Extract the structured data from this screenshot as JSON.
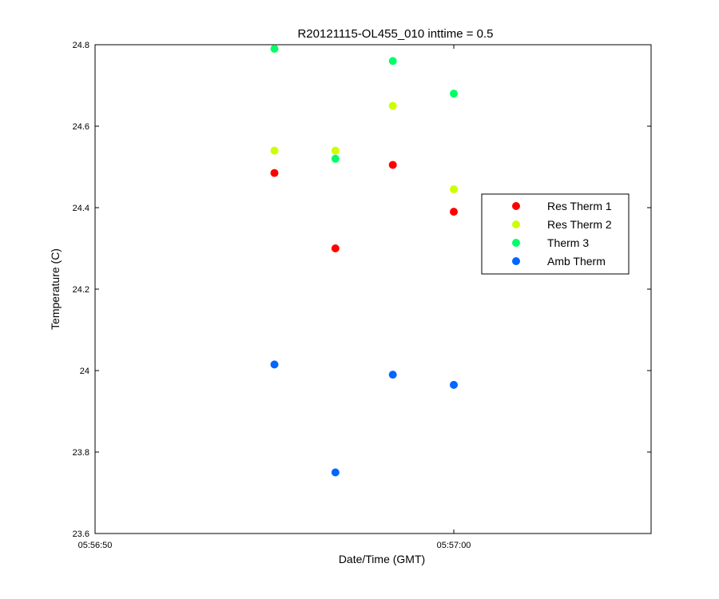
{
  "chart_data": {
    "type": "scatter",
    "title": "R20121115-OL455_010 inttime = 0.5",
    "xlabel": "Date/Time (GMT)",
    "ylabel": "Temperature (C)",
    "x_unit": "time",
    "xlim": [
      "05:56:50",
      "05:57:05.5"
    ],
    "ylim": [
      23.6,
      24.8
    ],
    "x_ticks": [
      "05:56:50",
      "05:57:00"
    ],
    "y_ticks": [
      23.6,
      23.8,
      24,
      24.2,
      24.4,
      24.6,
      24.8
    ],
    "y_tick_labels": [
      "23.6",
      "23.8",
      "24",
      "24.2",
      "24.4",
      "24.6",
      "24.8"
    ],
    "grid": false,
    "legend_position": "right",
    "series": [
      {
        "name": "Res Therm 1",
        "color": "#ff0000",
        "points": [
          [
            "05:56:55",
            24.485
          ],
          [
            "05:56:56.7",
            24.3
          ],
          [
            "05:56:58.3",
            24.505
          ],
          [
            "05:57:00",
            24.39
          ]
        ]
      },
      {
        "name": "Res Therm 2",
        "color": "#ccff00",
        "points": [
          [
            "05:56:55",
            24.54
          ],
          [
            "05:56:56.7",
            24.54
          ],
          [
            "05:56:58.3",
            24.65
          ],
          [
            "05:57:00",
            24.445
          ]
        ]
      },
      {
        "name": "Therm 3",
        "color": "#00ff66",
        "points": [
          [
            "05:56:55",
            24.79
          ],
          [
            "05:56:56.7",
            24.52
          ],
          [
            "05:56:58.3",
            24.76
          ],
          [
            "05:57:00",
            24.68
          ]
        ]
      },
      {
        "name": "Amb Therm",
        "color": "#0066ff",
        "points": [
          [
            "05:56:55",
            24.015
          ],
          [
            "05:56:56.7",
            23.75
          ],
          [
            "05:56:58.3",
            23.99
          ],
          [
            "05:57:00",
            23.965
          ]
        ]
      }
    ]
  }
}
